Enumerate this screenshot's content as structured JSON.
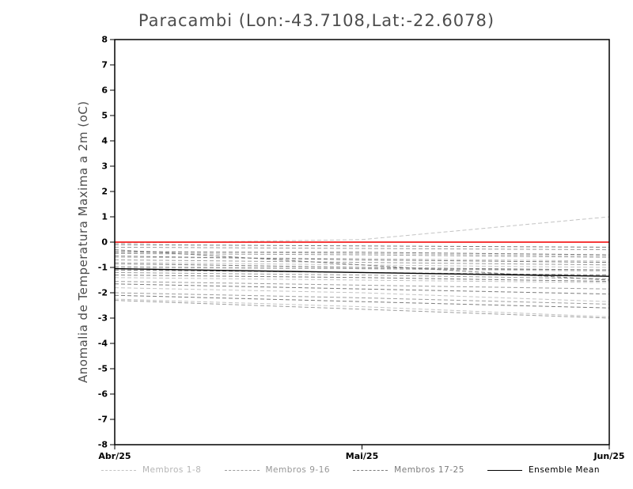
{
  "title": "Paracambi (Lon:-43.7108,Lat:-22.6078)",
  "ylabel": "Anomalia de Temperatura Maxima a 2m (oC)",
  "chart_data": {
    "type": "line",
    "x_labels": [
      "Abr/25",
      "Mai/25",
      "Jun/25"
    ],
    "ylim": [
      -8,
      8
    ],
    "ytick_step": 1,
    "grid": false,
    "legend_position": "bottom",
    "zero_line": {
      "name": "zero-reference",
      "color": "#f52020",
      "values": [
        0,
        0,
        0
      ]
    },
    "ensemble_mean": {
      "name": "Ensemble Mean",
      "color": "#000000",
      "text_color": "#000000",
      "values": [
        -1.05,
        -1.2,
        -1.35
      ]
    },
    "groups": [
      {
        "name": "Membros 1-8",
        "color": "#c3c3c3",
        "text_color": "#b5b5b5",
        "members": [
          [
            -0.05,
            0.1,
            1.0
          ],
          [
            -0.35,
            -0.45,
            -0.55
          ],
          [
            -0.6,
            -0.65,
            -0.75
          ],
          [
            -0.95,
            -1.05,
            -1.15
          ],
          [
            -1.4,
            -1.5,
            -1.6
          ],
          [
            -1.8,
            -2.0,
            -2.35
          ],
          [
            -2.25,
            -2.55,
            -2.95
          ],
          [
            -0.8,
            -0.9,
            -1.0
          ]
        ]
      },
      {
        "name": "Membros 9-16",
        "color": "#9d9d9d",
        "text_color": "#979797",
        "members": [
          [
            -0.2,
            -0.25,
            -0.3
          ],
          [
            -0.45,
            -0.5,
            -0.6
          ],
          [
            -0.7,
            -0.8,
            -0.9
          ],
          [
            -1.0,
            -1.05,
            -1.1
          ],
          [
            -1.2,
            -1.3,
            -1.45
          ],
          [
            -1.55,
            -1.7,
            -1.85
          ],
          [
            -2.0,
            -2.2,
            -2.45
          ],
          [
            -2.3,
            -2.65,
            -3.0
          ]
        ]
      },
      {
        "name": "Membros 17-25",
        "color": "#7c7c7c",
        "text_color": "#7c7c7c",
        "members": [
          [
            -0.1,
            -0.15,
            -0.2
          ],
          [
            -0.4,
            -0.4,
            -0.5
          ],
          [
            -0.55,
            -0.7,
            -0.8
          ],
          [
            -0.85,
            -1.0,
            -1.1
          ],
          [
            -1.1,
            -1.2,
            -1.3
          ],
          [
            -1.3,
            -1.4,
            -1.55
          ],
          [
            -1.65,
            -1.85,
            -2.05
          ],
          [
            -2.1,
            -2.35,
            -2.6
          ],
          [
            -0.3,
            -0.9,
            -1.5
          ]
        ]
      }
    ]
  }
}
